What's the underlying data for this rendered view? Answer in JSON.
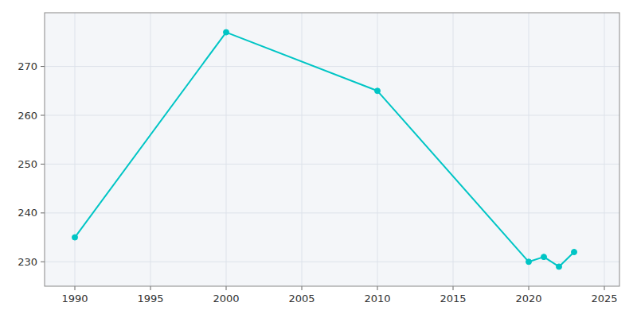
{
  "chart_data": {
    "type": "line",
    "x": [
      1990,
      2000,
      2010,
      2020,
      2021,
      2022,
      2023
    ],
    "values": [
      235,
      277,
      265,
      230,
      231,
      229,
      232
    ],
    "color": "#00C5C5",
    "marker": "circle",
    "xlim": [
      1988,
      2026
    ],
    "ylim": [
      225,
      281
    ],
    "xticks": [
      1990,
      1995,
      2000,
      2005,
      2010,
      2015,
      2020,
      2025
    ],
    "yticks": [
      230,
      240,
      250,
      260,
      270
    ],
    "grid": true
  }
}
